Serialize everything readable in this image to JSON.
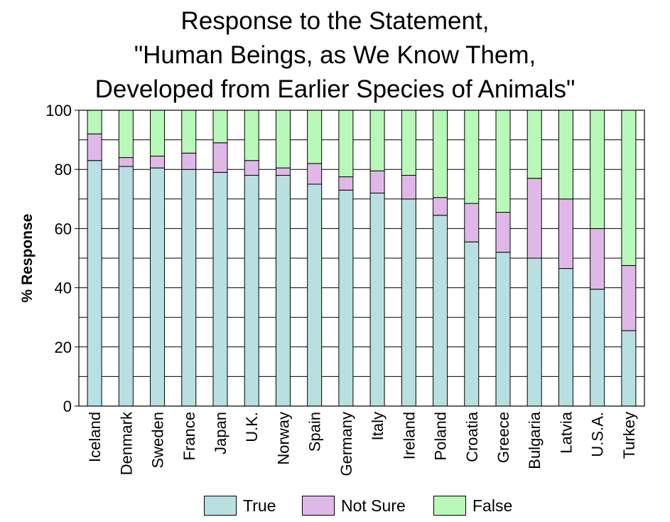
{
  "chart_data": {
    "type": "bar",
    "stacked": true,
    "title": [
      "Response to the Statement,",
      "\"Human Beings, as We Know Them,",
      "Developed from Earlier Species of Animals\""
    ],
    "xlabel": "",
    "ylabel": "% Response",
    "ylim": [
      0,
      100
    ],
    "yticks": [
      0,
      20,
      40,
      60,
      80,
      100
    ],
    "grid": true,
    "legend_position": "bottom",
    "categories": [
      "Iceland",
      "Denmark",
      "Sweden",
      "France",
      "Japan",
      "U.K.",
      "Norway",
      "Spain",
      "Germany",
      "Italy",
      "Ireland",
      "Poland",
      "Croatia",
      "Greece",
      "Bulgaria",
      "Latvia",
      "U.S.A.",
      "Turkey"
    ],
    "series": [
      {
        "name": "True",
        "color": "#b8e0e0",
        "values": [
          83,
          81,
          80.5,
          80,
          79,
          78,
          78,
          75,
          73,
          72,
          70,
          64.5,
          55.5,
          52,
          50,
          46.5,
          39.5,
          25.5
        ]
      },
      {
        "name": "Not Sure",
        "color": "#e0b8e8",
        "values": [
          9,
          3,
          4,
          5.5,
          10,
          5,
          2.5,
          7,
          4.5,
          7.5,
          8,
          6,
          13,
          13.5,
          27,
          23.5,
          20.5,
          22
        ]
      },
      {
        "name": "False",
        "color": "#b8f8b8",
        "values": [
          8,
          16,
          15.5,
          14.5,
          11,
          17,
          19.5,
          18,
          22.5,
          20.5,
          22,
          29.5,
          31.5,
          34.5,
          23,
          30,
          40,
          52.5
        ]
      }
    ]
  }
}
